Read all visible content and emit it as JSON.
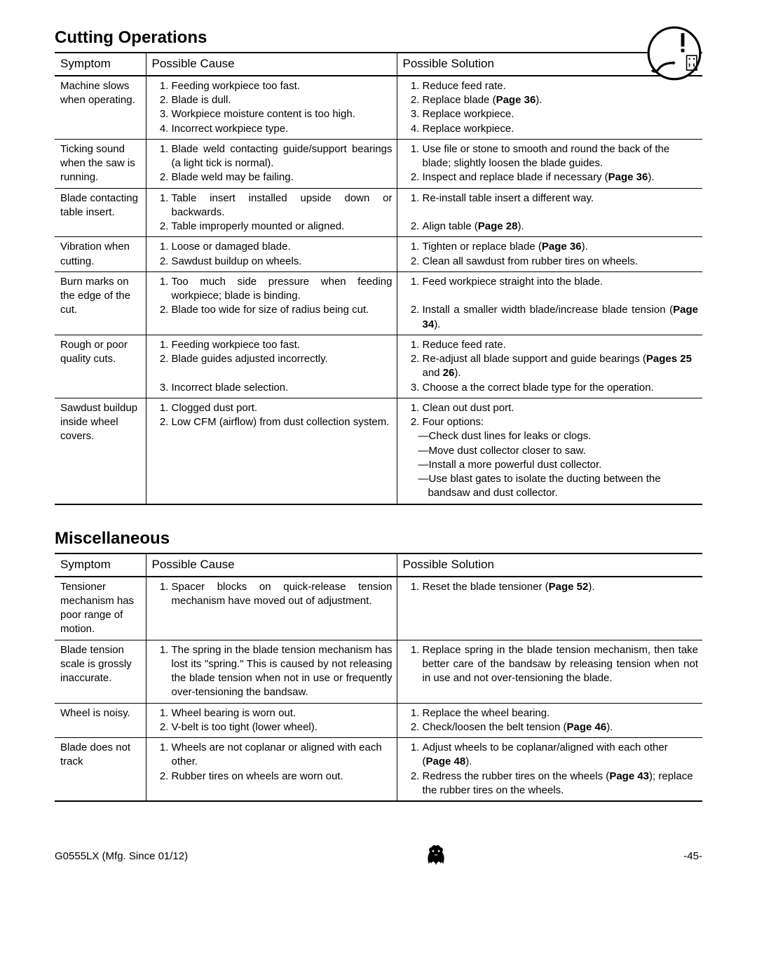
{
  "sections": [
    {
      "title": "Cutting Operations",
      "headers": [
        "Symptom",
        "Possible Cause",
        "Possible Solution"
      ],
      "rows": [
        {
          "symptom": "Machine slows when operating.",
          "cause": [
            "Feeding workpiece too fast.",
            "Blade is dull.",
            "Workpiece moisture content is too high.",
            "Incorrect workpiece type."
          ],
          "solution": [
            "Reduce feed rate.",
            "Replace blade (<b>Page 36</b>).",
            "Replace workpiece.",
            "Replace workpiece."
          ]
        },
        {
          "symptom": "Ticking sound when the saw is running.",
          "cause": [
            "Blade weld contacting guide/support bearings (a light tick is normal).",
            "Blade weld may be failing."
          ],
          "solution": [
            "Use file or stone to smooth and round the back of the blade; slightly loosen the blade guides.",
            "Inspect and replace blade if necessary (<b>Page 36</b>)."
          ],
          "justify_first_cause": true
        },
        {
          "symptom": "Blade contacting table insert.",
          "cause": [
            "Table insert installed upside down or backwards.",
            "Table improperly mounted or aligned."
          ],
          "solution": [
            "Re-install table insert a different way.<br><span style=\"visibility:hidden\">x</span>",
            "Align table (<b>Page 28</b>)."
          ],
          "justify_first_cause": true
        },
        {
          "symptom": "Vibration when cutting.",
          "cause": [
            "Loose or damaged blade.",
            "Sawdust buildup on wheels."
          ],
          "solution": [
            "Tighten or replace blade (<b>Page 36</b>).",
            "Clean all sawdust from rubber tires on wheels."
          ]
        },
        {
          "symptom": "Burn marks on the edge of the cut.",
          "cause": [
            "Too much side pressure when feeding workpiece; blade is binding.",
            "Blade too wide for size of radius being cut."
          ],
          "solution": [
            "Feed workpiece straight into the blade.<br><span style=\"visibility:hidden\">x</span>",
            "Install a smaller width blade/increase blade tension (<b>Page 34</b>)."
          ],
          "justify_first_cause": true,
          "justify_sol2": true
        },
        {
          "symptom": "Rough or poor quality cuts.",
          "cause": [
            "Feeding workpiece too fast.",
            "Blade guides adjusted incorrectly.<br><span style=\"visibility:hidden\">x</span>",
            "Incorrect blade selection."
          ],
          "solution": [
            "Reduce feed rate.",
            "Re-adjust all blade support and guide bearings (<b>Pages 25</b> and <b>26</b>).",
            "Choose a the correct blade type for the operation."
          ]
        },
        {
          "symptom": "Sawdust buildup inside wheel covers.",
          "cause": [
            "Clogged dust port.",
            "Low CFM (airflow) from dust collection system."
          ],
          "solution": [
            "Clean out dust port.",
            "Four options:"
          ],
          "sub_after_solution2": [
            "—Check dust lines for leaks or clogs.",
            "—Move dust collector closer to saw.",
            "—Install a more powerful dust collector.",
            "—Use blast gates to isolate the ducting between the bandsaw and dust collector."
          ],
          "justify_second_cause": true
        }
      ]
    },
    {
      "title": "Miscellaneous",
      "headers": [
        "Symptom",
        "Possible Cause",
        "Possible Solution"
      ],
      "rows": [
        {
          "symptom": "Tensioner mechanism has poor range of motion.",
          "cause": [
            "Spacer blocks on quick-release tension mechanism have moved out of adjustment."
          ],
          "solution": [
            "Reset the blade tensioner (<b>Page 52</b>)."
          ],
          "justify_first_cause": true
        },
        {
          "symptom": "Blade tension scale is grossly inaccurate.",
          "cause": [
            "The spring in the blade tension mechanism has lost its \"spring.\" This is caused by not releasing the blade tension when not in use or frequently over-tensioning the bandsaw."
          ],
          "solution": [
            "Replace spring in the blade tension mechanism, then take better care of the bandsaw by releasing tension when not in use and not over-tensioning the blade."
          ],
          "justify_first_cause": true,
          "justify_first_sol": true
        },
        {
          "symptom": "Wheel is noisy.",
          "cause": [
            "Wheel bearing is worn out.",
            "V-belt is too tight (lower wheel)."
          ],
          "solution": [
            "Replace the wheel bearing.",
            "Check/loosen the belt tension (<b>Page 46</b>)."
          ]
        },
        {
          "symptom": "Blade does not track",
          "cause": [
            "Wheels are not coplanar or aligned with each other.",
            "Rubber tires on wheels are worn out."
          ],
          "solution": [
            "Adjust wheels to be coplanar/aligned with each other (<b>Page 48</b>).",
            "Redress the rubber tires on the wheels (<b>Page 43</b>); replace the rubber tires on the wheels."
          ]
        }
      ]
    }
  ],
  "footer_left": "G0555LX (Mfg. Since 01/12)",
  "footer_right": "-45-"
}
